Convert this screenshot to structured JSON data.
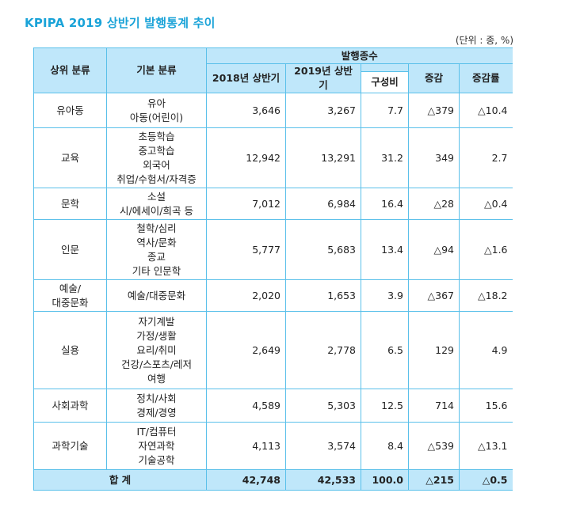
{
  "title": "KPIPA 2019 상반기 발행통계 추이",
  "unit": "(단위 : 종, %)",
  "headers": {
    "upper": "상위 분류",
    "basic": "기본 분류",
    "group": "발행종수",
    "y2018": "2018년 상반기",
    "y2019": "2019년 상반기",
    "share": "구성비",
    "change": "증감",
    "rate": "증감률"
  },
  "rows": [
    {
      "upper": "유아동",
      "basic": [
        "유아",
        "아동(어린이)"
      ],
      "y2018": "3,646",
      "y2019": "3,267",
      "share": "7.7",
      "change": "△379",
      "rate": "△10.4"
    },
    {
      "upper": "교육",
      "basic": [
        "초등학습",
        "중고학습",
        "외국어",
        "취업/수험서/자격증"
      ],
      "y2018": "12,942",
      "y2019": "13,291",
      "share": "31.2",
      "change": "349",
      "rate": "2.7"
    },
    {
      "upper": "문학",
      "basic": [
        "소설",
        "시/에세이/희곡 등"
      ],
      "y2018": "7,012",
      "y2019": "6,984",
      "share": "16.4",
      "change": "△28",
      "rate": "△0.4"
    },
    {
      "upper": "인문",
      "basic": [
        "철학/심리",
        "역사/문화",
        "종교",
        "기타 인문학"
      ],
      "y2018": "5,777",
      "y2019": "5,683",
      "share": "13.4",
      "change": "△94",
      "rate": "△1.6"
    },
    {
      "upper": "예술/\n대중문화",
      "basic": [
        "예술/대중문화"
      ],
      "y2018": "2,020",
      "y2019": "1,653",
      "share": "3.9",
      "change": "△367",
      "rate": "△18.2"
    },
    {
      "upper": "실용",
      "basic": [
        "자기계발",
        "가정/생활",
        "요리/취미",
        "건강/스포츠/레저",
        "여행"
      ],
      "y2018": "2,649",
      "y2019": "2,778",
      "share": "6.5",
      "change": "129",
      "rate": "4.9"
    },
    {
      "upper": "사회과학",
      "basic": [
        "정치/사회",
        "경제/경영"
      ],
      "y2018": "4,589",
      "y2019": "5,303",
      "share": "12.5",
      "change": "714",
      "rate": "15.6"
    },
    {
      "upper": "과학기술",
      "basic": [
        "IT/컴퓨터",
        "자연과학",
        "기술공학"
      ],
      "y2018": "4,113",
      "y2019": "3,574",
      "share": "8.4",
      "change": "△539",
      "rate": "△13.1"
    }
  ],
  "total": {
    "label": "합  계",
    "y2018": "42,748",
    "y2019": "42,533",
    "share": "100.0",
    "change": "△215",
    "rate": "△0.5"
  }
}
